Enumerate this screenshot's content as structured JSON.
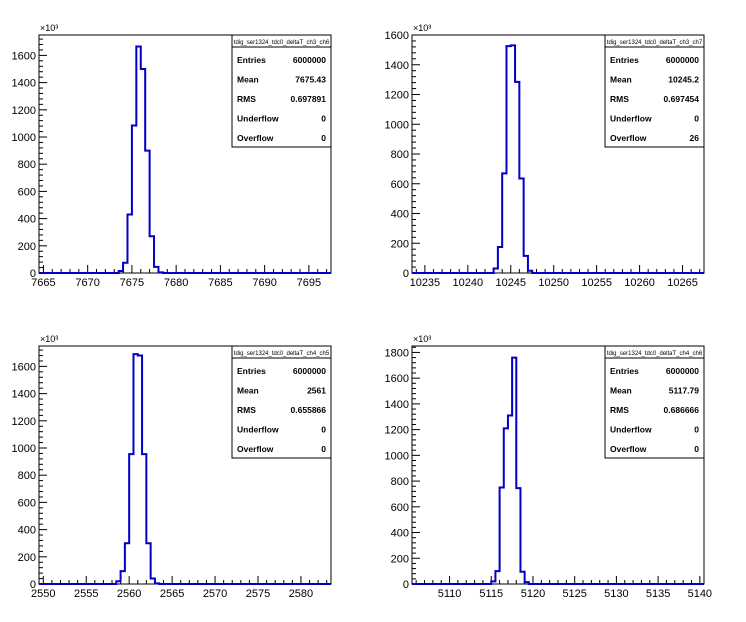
{
  "chart_data": [
    {
      "type": "histogram",
      "title": "tdig_ser1324_tdc0_deltaT_ch3_ch6",
      "multiplier": "×10³",
      "xlim": [
        7664.5,
        7697.5
      ],
      "ylim": [
        0,
        1750
      ],
      "x_ticks": [
        7665,
        7670,
        7675,
        7680,
        7685,
        7690,
        7695
      ],
      "y_ticks": [
        0,
        200,
        400,
        600,
        800,
        1000,
        1200,
        1400,
        1600
      ],
      "bin_width": 0.5,
      "bins": [
        {
          "x": 7673.5,
          "y": 15
        },
        {
          "x": 7674.0,
          "y": 75
        },
        {
          "x": 7674.5,
          "y": 430
        },
        {
          "x": 7675.0,
          "y": 1085
        },
        {
          "x": 7675.5,
          "y": 1665
        },
        {
          "x": 7676.0,
          "y": 1500
        },
        {
          "x": 7676.5,
          "y": 900
        },
        {
          "x": 7677.0,
          "y": 270
        },
        {
          "x": 7677.5,
          "y": 45
        },
        {
          "x": 7678.0,
          "y": 5
        }
      ],
      "stats": [
        {
          "label": "Entries",
          "value": "6000000"
        },
        {
          "label": "Mean",
          "value": "7675.43"
        },
        {
          "label": "RMS",
          "value": "0.697891"
        },
        {
          "label": "Underflow",
          "value": "0"
        },
        {
          "label": "Overflow",
          "value": "0"
        }
      ]
    },
    {
      "type": "histogram",
      "title": "tdig_ser1324_tdc0_deltaT_ch3_ch7",
      "multiplier": "×10³",
      "xlim": [
        10233.5,
        10267.5
      ],
      "ylim": [
        0,
        1600
      ],
      "x_ticks": [
        10235,
        10240,
        10245,
        10250,
        10255,
        10260,
        10265
      ],
      "y_ticks": [
        0,
        200,
        400,
        600,
        800,
        1000,
        1200,
        1400,
        1600
      ],
      "bin_width": 0.5,
      "bins": [
        {
          "x": 10243.0,
          "y": 30
        },
        {
          "x": 10243.5,
          "y": 175
        },
        {
          "x": 10244.0,
          "y": 670
        },
        {
          "x": 10244.5,
          "y": 1525
        },
        {
          "x": 10245.0,
          "y": 1530
        },
        {
          "x": 10245.5,
          "y": 1285
        },
        {
          "x": 10246.0,
          "y": 635
        },
        {
          "x": 10246.5,
          "y": 115
        },
        {
          "x": 10247.0,
          "y": 15
        }
      ],
      "stats": [
        {
          "label": "Entries",
          "value": "6000000"
        },
        {
          "label": "Mean",
          "value": "10245.2"
        },
        {
          "label": "RMS",
          "value": "0.697454"
        },
        {
          "label": "Underflow",
          "value": "0"
        },
        {
          "label": "Overflow",
          "value": "26"
        }
      ]
    },
    {
      "type": "histogram",
      "title": "tdig_ser1324_tdc0_deltaT_ch4_ch5",
      "multiplier": "×10³",
      "xlim": [
        2549.5,
        2583.5
      ],
      "ylim": [
        0,
        1750
      ],
      "x_ticks": [
        2550,
        2555,
        2560,
        2565,
        2570,
        2575,
        2580
      ],
      "y_ticks": [
        0,
        200,
        400,
        600,
        800,
        1000,
        1200,
        1400,
        1600
      ],
      "bin_width": 0.5,
      "bins": [
        {
          "x": 2558.5,
          "y": 20
        },
        {
          "x": 2559.0,
          "y": 95
        },
        {
          "x": 2559.5,
          "y": 300
        },
        {
          "x": 2560.0,
          "y": 955
        },
        {
          "x": 2560.5,
          "y": 1690
        },
        {
          "x": 2561.0,
          "y": 1680
        },
        {
          "x": 2561.5,
          "y": 955
        },
        {
          "x": 2562.0,
          "y": 300
        },
        {
          "x": 2562.5,
          "y": 40
        },
        {
          "x": 2563.0,
          "y": 5
        }
      ],
      "stats": [
        {
          "label": "Entries",
          "value": "6000000"
        },
        {
          "label": "Mean",
          "value": "2561"
        },
        {
          "label": "RMS",
          "value": "0.655866"
        },
        {
          "label": "Underflow",
          "value": "0"
        },
        {
          "label": "Overflow",
          "value": "0"
        }
      ]
    },
    {
      "type": "histogram",
      "title": "tdig_ser1324_tdc0_deltaT_ch4_ch6",
      "multiplier": "×10³",
      "xlim": [
        5105.5,
        5140.5
      ],
      "ylim": [
        0,
        1850
      ],
      "x_ticks": [
        5110,
        5115,
        5120,
        5125,
        5130,
        5135,
        5140
      ],
      "y_ticks": [
        0,
        200,
        400,
        600,
        800,
        1000,
        1200,
        1400,
        1600,
        1800
      ],
      "bin_width": 0.5,
      "bins": [
        {
          "x": 5115.0,
          "y": 20
        },
        {
          "x": 5115.5,
          "y": 100
        },
        {
          "x": 5116.0,
          "y": 750
        },
        {
          "x": 5116.5,
          "y": 1210
        },
        {
          "x": 5117.0,
          "y": 1310
        },
        {
          "x": 5117.5,
          "y": 1760
        },
        {
          "x": 5118.0,
          "y": 745
        },
        {
          "x": 5118.5,
          "y": 95
        },
        {
          "x": 5119.0,
          "y": 15
        }
      ],
      "stats": [
        {
          "label": "Entries",
          "value": "6000000"
        },
        {
          "label": "Mean",
          "value": "5117.79"
        },
        {
          "label": "RMS",
          "value": "0.686666"
        },
        {
          "label": "Underflow",
          "value": "0"
        },
        {
          "label": "Overflow",
          "value": "0"
        }
      ]
    }
  ],
  "colors": {
    "histogram_line": "#0000c8",
    "axis": "#000000",
    "background": "#ffffff"
  }
}
